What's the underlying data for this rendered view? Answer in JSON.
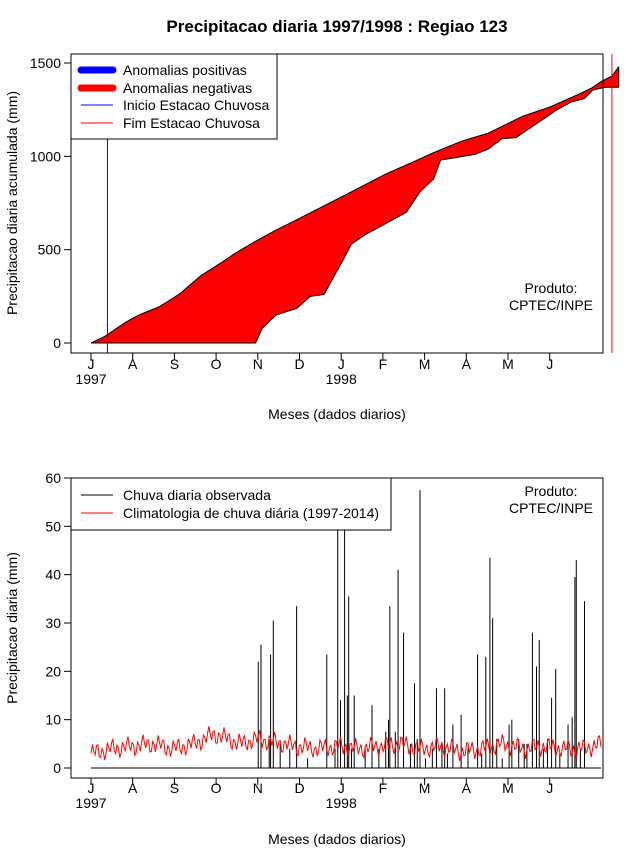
{
  "chart_data": [
    {
      "type": "area",
      "title": "Precipitacao diaria 1997/1998 : Regiao 123",
      "xlabel": "Meses (dados diarios)",
      "ylabel": "Precipitacao diaria acumulada (mm)",
      "x_ticks": [
        "J",
        "A",
        "S",
        "O",
        "N",
        "D",
        "J",
        "F",
        "M",
        "A",
        "M",
        "J"
      ],
      "year_labels": [
        {
          "label": "1997",
          "month_index": 0
        },
        {
          "label": "1998",
          "month_index": 6
        }
      ],
      "yticks": [
        "0",
        "500",
        "1000",
        "1500"
      ],
      "ylim": [
        0,
        1550
      ],
      "legend": {
        "position": "top-left",
        "entries": [
          {
            "label": "Anomalias positivas",
            "color": "#0000ff",
            "style": "thick"
          },
          {
            "label": "Anomalias negativas",
            "color": "#ff0000",
            "style": "thick"
          },
          {
            "label": "Inicio Estacao Chuvosa",
            "color": "#0000ff",
            "style": "thin"
          },
          {
            "label": "Fim Estacao Chuvosa",
            "color": "#ff0000",
            "style": "thin"
          }
        ]
      },
      "annotation": [
        "Produto:",
        "CPTEC/INPE"
      ],
      "season_start_day": 12,
      "season_end_day": 380,
      "climatology_cumulative": {
        "days": [
          0,
          10,
          25,
          35,
          50,
          65,
          80,
          95,
          105,
          120,
          135,
          150,
          170,
          190,
          215,
          235,
          250,
          270,
          290,
          315,
          335,
          355,
          365,
          372,
          380,
          385
        ],
        "values": [
          0,
          35,
          110,
          150,
          195,
          265,
          360,
          430,
          480,
          545,
          605,
          660,
          735,
          810,
          905,
          970,
          1020,
          1080,
          1125,
          1215,
          1265,
          1330,
          1365,
          1400,
          1430,
          1480
        ]
      },
      "observed_cumulative": {
        "days": [
          0,
          120,
          125,
          135,
          150,
          160,
          170,
          185,
          190,
          200,
          230,
          240,
          250,
          255,
          280,
          290,
          300,
          310,
          330,
          340,
          350,
          360,
          366,
          375,
          385
        ],
        "values": [
          0,
          0,
          80,
          150,
          185,
          250,
          260,
          460,
          530,
          580,
          700,
          810,
          880,
          980,
          1010,
          1040,
          1095,
          1100,
          1200,
          1250,
          1290,
          1310,
          1355,
          1370,
          1370
        ]
      },
      "colors": {
        "fill_negative": "#ff0000",
        "fill_positive": "#0000ff",
        "line": "#000000"
      }
    },
    {
      "type": "line",
      "xlabel": "Meses (dados diarios)",
      "ylabel": "Precipitacao diaria (mm)",
      "x_ticks": [
        "J",
        "A",
        "S",
        "O",
        "N",
        "D",
        "J",
        "F",
        "M",
        "A",
        "M",
        "J"
      ],
      "year_labels": [
        {
          "label": "1997",
          "month_index": 0
        },
        {
          "label": "1998",
          "month_index": 6
        }
      ],
      "yticks": [
        "0",
        "10",
        "20",
        "30",
        "40",
        "50",
        "60"
      ],
      "ylim": [
        0,
        60
      ],
      "legend": {
        "position": "top-left",
        "entries": [
          {
            "label": "Chuva diaria observada",
            "color": "#000000"
          },
          {
            "label": "Climatologia de chuva diária (1997-2014)",
            "color": "#ff0000"
          }
        ]
      },
      "annotation": [
        "Produto:",
        "CPTEC/INPE"
      ],
      "series": [
        {
          "name": "Chuva diaria observada",
          "color": "#000000",
          "spikes": [
            [
              122,
              22
            ],
            [
              124,
              25.5
            ],
            [
              130,
              6
            ],
            [
              131,
              23.5
            ],
            [
              133,
              30.5
            ],
            [
              138,
              5
            ],
            [
              145,
              4
            ],
            [
              150,
              33.5
            ],
            [
              158,
              2
            ],
            [
              172,
              23.5
            ],
            [
              178,
              4
            ],
            [
              180,
              49.5
            ],
            [
              182,
              14
            ],
            [
              185,
              49.5
            ],
            [
              187,
              15
            ],
            [
              188,
              35.5
            ],
            [
              190,
              4
            ],
            [
              192,
              15
            ],
            [
              200,
              4
            ],
            [
              205,
              13
            ],
            [
              210,
              4
            ],
            [
              215,
              7.5
            ],
            [
              217,
              10
            ],
            [
              218,
              33.5
            ],
            [
              222,
              7.5
            ],
            [
              224,
              41
            ],
            [
              228,
              28
            ],
            [
              233,
              5
            ],
            [
              236,
              17.5
            ],
            [
              238,
              6
            ],
            [
              240,
              57.5
            ],
            [
              244,
              2
            ],
            [
              249,
              4
            ],
            [
              252,
              16.5
            ],
            [
              256,
              5
            ],
            [
              258,
              16.5
            ],
            [
              260,
              3
            ],
            [
              264,
              9
            ],
            [
              270,
              11
            ],
            [
              275,
              4
            ],
            [
              282,
              23.5
            ],
            [
              285,
              3
            ],
            [
              288,
              23
            ],
            [
              291,
              43.5
            ],
            [
              293,
              31
            ],
            [
              296,
              6
            ],
            [
              300,
              2
            ],
            [
              305,
              9
            ],
            [
              307,
              10
            ],
            [
              312,
              6
            ],
            [
              316,
              5
            ],
            [
              318,
              5
            ],
            [
              322,
              28
            ],
            [
              325,
              21
            ],
            [
              327,
              26.5
            ],
            [
              330,
              4
            ],
            [
              333,
              6
            ],
            [
              336,
              14.5
            ],
            [
              339,
              20.5
            ],
            [
              342,
              3
            ],
            [
              348,
              9
            ],
            [
              351,
              10.5
            ],
            [
              353,
              39.5
            ],
            [
              354,
              43
            ],
            [
              357,
              4
            ],
            [
              360,
              34.5
            ]
          ]
        },
        {
          "name": "Climatologia de chuva diária (1997-2014)",
          "color": "#ff0000",
          "anchors": {
            "days": [
              0,
              15,
              30,
              45,
              60,
              75,
              90,
              100,
              110,
              120,
              130,
              140,
              150,
              165,
              180,
              195,
              210,
              225,
              240,
              255,
              270,
              285,
              300,
              315,
              330,
              345,
              360,
              372
            ],
            "values": [
              3,
              4,
              4.5,
              5,
              4,
              5,
              7,
              6,
              5,
              6,
              5.5,
              5,
              4.5,
              4,
              4.5,
              4,
              4.5,
              5,
              4,
              4.5,
              3.5,
              4,
              5,
              4,
              4.5,
              4,
              4,
              5
            ]
          }
        }
      ]
    }
  ]
}
